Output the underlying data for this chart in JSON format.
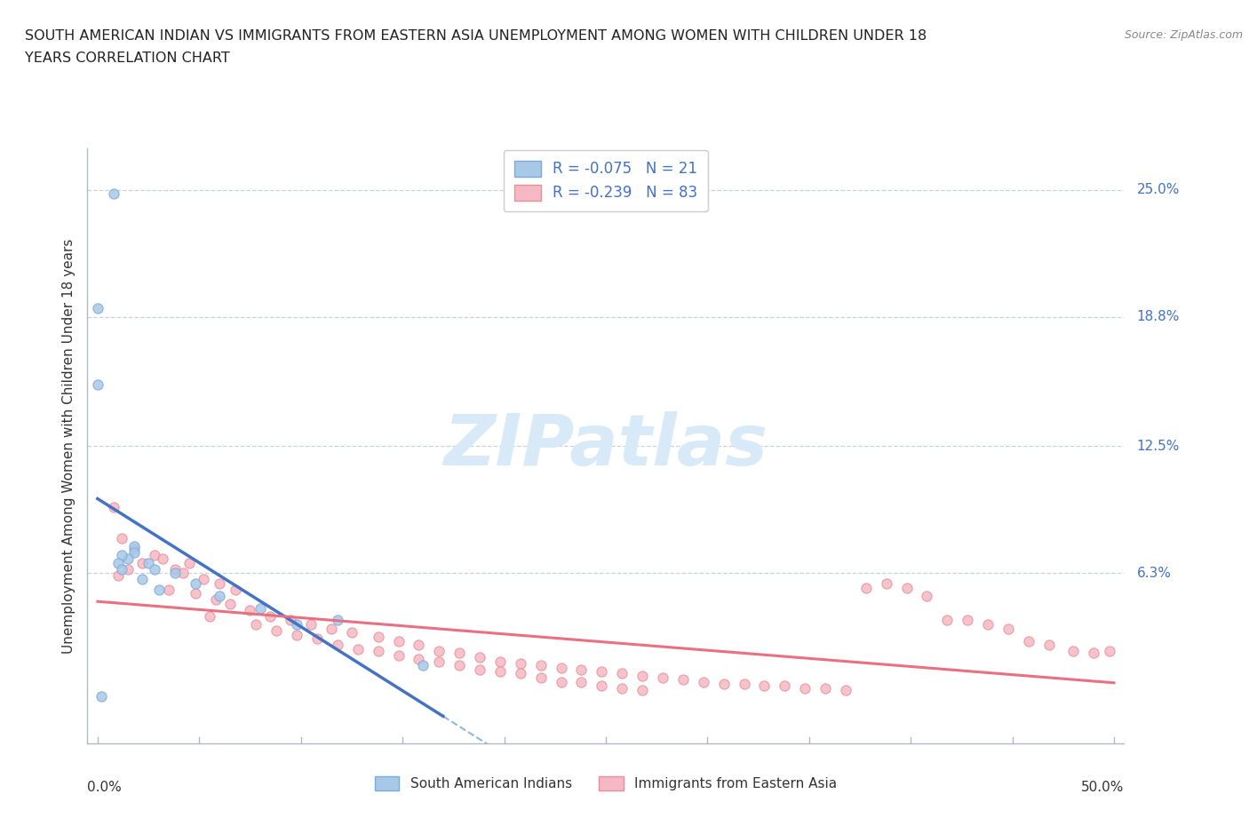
{
  "title_line1": "SOUTH AMERICAN INDIAN VS IMMIGRANTS FROM EASTERN ASIA UNEMPLOYMENT AMONG WOMEN WITH CHILDREN UNDER 18",
  "title_line2": "YEARS CORRELATION CHART",
  "source": "Source: ZipAtlas.com",
  "ylabel": "Unemployment Among Women with Children Under 18 years",
  "ytick_values": [
    0.25,
    0.188,
    0.125,
    0.063
  ],
  "ytick_labels": [
    "25.0%",
    "18.8%",
    "12.5%",
    "6.3%"
  ],
  "xlim": [
    0.0,
    0.5
  ],
  "ylim": [
    -0.02,
    0.27
  ],
  "blue_scatter_color": "#a8c8e8",
  "blue_edge_color": "#7aabdc",
  "pink_scatter_color": "#f5b8c4",
  "pink_edge_color": "#e8909a",
  "blue_line_color": "#4472c4",
  "pink_line_color": "#e87080",
  "dash_line_color": "#90b8d0",
  "ytick_color": "#4472c4",
  "watermark_color": "#d8eaf8",
  "grid_color": "#c8d4dc",
  "blue_points": [
    [
      0.008,
      0.248
    ],
    [
      0.0,
      0.192
    ],
    [
      0.0,
      0.155
    ],
    [
      0.018,
      0.076
    ],
    [
      0.018,
      0.073
    ],
    [
      0.015,
      0.07
    ],
    [
      0.012,
      0.072
    ],
    [
      0.01,
      0.068
    ],
    [
      0.025,
      0.068
    ],
    [
      0.012,
      0.065
    ],
    [
      0.028,
      0.065
    ],
    [
      0.038,
      0.063
    ],
    [
      0.022,
      0.06
    ],
    [
      0.048,
      0.058
    ],
    [
      0.03,
      0.055
    ],
    [
      0.06,
      0.052
    ],
    [
      0.08,
      0.046
    ],
    [
      0.118,
      0.04
    ],
    [
      0.098,
      0.038
    ],
    [
      0.16,
      0.018
    ],
    [
      0.002,
      0.003
    ]
  ],
  "pink_points": [
    [
      0.008,
      0.095
    ],
    [
      0.012,
      0.08
    ],
    [
      0.018,
      0.075
    ],
    [
      0.022,
      0.068
    ],
    [
      0.028,
      0.072
    ],
    [
      0.015,
      0.065
    ],
    [
      0.032,
      0.07
    ],
    [
      0.038,
      0.065
    ],
    [
      0.045,
      0.068
    ],
    [
      0.01,
      0.062
    ],
    [
      0.042,
      0.063
    ],
    [
      0.052,
      0.06
    ],
    [
      0.06,
      0.058
    ],
    [
      0.068,
      0.055
    ],
    [
      0.035,
      0.055
    ],
    [
      0.048,
      0.053
    ],
    [
      0.058,
      0.05
    ],
    [
      0.065,
      0.048
    ],
    [
      0.075,
      0.045
    ],
    [
      0.055,
      0.042
    ],
    [
      0.085,
      0.042
    ],
    [
      0.095,
      0.04
    ],
    [
      0.078,
      0.038
    ],
    [
      0.105,
      0.038
    ],
    [
      0.115,
      0.036
    ],
    [
      0.088,
      0.035
    ],
    [
      0.125,
      0.034
    ],
    [
      0.098,
      0.033
    ],
    [
      0.138,
      0.032
    ],
    [
      0.108,
      0.031
    ],
    [
      0.148,
      0.03
    ],
    [
      0.118,
      0.028
    ],
    [
      0.158,
      0.028
    ],
    [
      0.128,
      0.026
    ],
    [
      0.168,
      0.025
    ],
    [
      0.138,
      0.025
    ],
    [
      0.178,
      0.024
    ],
    [
      0.148,
      0.023
    ],
    [
      0.188,
      0.022
    ],
    [
      0.158,
      0.021
    ],
    [
      0.198,
      0.02
    ],
    [
      0.168,
      0.02
    ],
    [
      0.208,
      0.019
    ],
    [
      0.178,
      0.018
    ],
    [
      0.218,
      0.018
    ],
    [
      0.228,
      0.017
    ],
    [
      0.188,
      0.016
    ],
    [
      0.238,
      0.016
    ],
    [
      0.198,
      0.015
    ],
    [
      0.248,
      0.015
    ],
    [
      0.208,
      0.014
    ],
    [
      0.258,
      0.014
    ],
    [
      0.268,
      0.013
    ],
    [
      0.218,
      0.012
    ],
    [
      0.278,
      0.012
    ],
    [
      0.288,
      0.011
    ],
    [
      0.228,
      0.01
    ],
    [
      0.298,
      0.01
    ],
    [
      0.238,
      0.01
    ],
    [
      0.308,
      0.009
    ],
    [
      0.318,
      0.009
    ],
    [
      0.248,
      0.008
    ],
    [
      0.328,
      0.008
    ],
    [
      0.338,
      0.008
    ],
    [
      0.348,
      0.007
    ],
    [
      0.258,
      0.007
    ],
    [
      0.358,
      0.007
    ],
    [
      0.368,
      0.006
    ],
    [
      0.268,
      0.006
    ],
    [
      0.378,
      0.056
    ],
    [
      0.388,
      0.058
    ],
    [
      0.398,
      0.056
    ],
    [
      0.408,
      0.052
    ],
    [
      0.418,
      0.04
    ],
    [
      0.428,
      0.04
    ],
    [
      0.438,
      0.038
    ],
    [
      0.448,
      0.036
    ],
    [
      0.458,
      0.03
    ],
    [
      0.468,
      0.028
    ],
    [
      0.48,
      0.025
    ],
    [
      0.49,
      0.024
    ],
    [
      0.498,
      0.025
    ]
  ]
}
